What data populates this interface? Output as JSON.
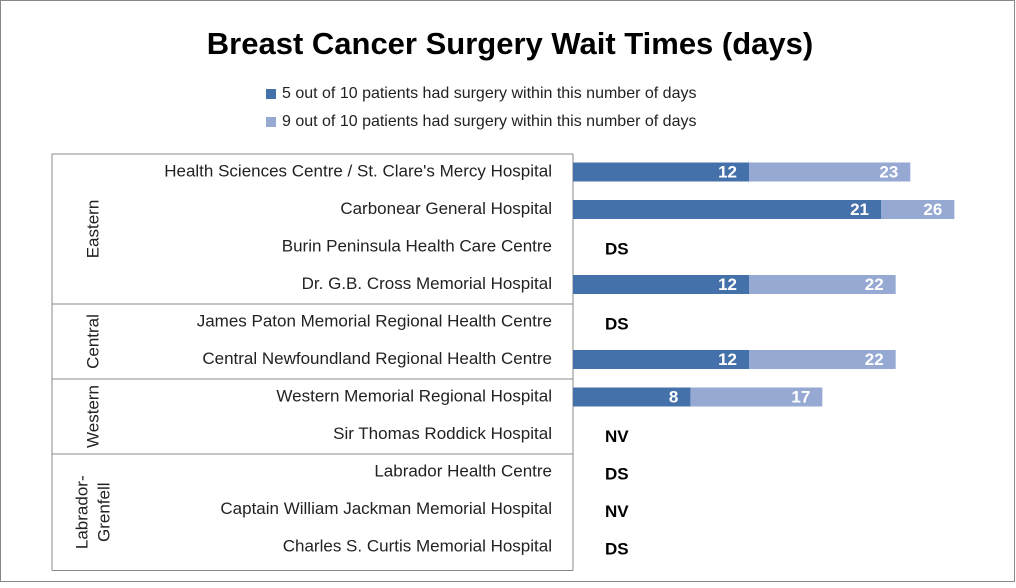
{
  "chart_data": {
    "type": "overlap-bar",
    "title": "Breast Cancer Surgery Wait Times (days)",
    "groups": [
      {
        "name": [
          "Eastern"
        ],
        "categories": [
          "Health Sciences Centre / St. Clare's Mercy Hospital",
          "Carbonear General Hospital",
          "Burin Peninsula Health Care Centre",
          "Dr. G.B. Cross Memorial Hospital"
        ]
      },
      {
        "name": [
          "Central"
        ],
        "categories": [
          "James Paton Memorial Regional Health Centre",
          "Central Newfoundland Regional Health Centre"
        ]
      },
      {
        "name": [
          "Western"
        ],
        "categories": [
          "Western Memorial Regional Hospital",
          "Sir Thomas Roddick Hospital"
        ]
      },
      {
        "name": [
          "Labrador-",
          "Grenfell"
        ],
        "categories": [
          "Labrador Health Centre",
          "Captain William Jackman Memorial Hospital",
          "Charles S. Curtis Memorial Hospital"
        ]
      }
    ],
    "series": [
      {
        "name": "5 out of 10 patients had surgery within this number of days",
        "color": "#4571aa",
        "values": [
          12,
          21,
          null,
          12,
          null,
          12,
          8,
          null,
          null,
          null,
          null
        ],
        "value_labels": [
          null,
          null,
          "DS",
          null,
          "DS",
          null,
          null,
          "NV",
          "DS",
          "NV",
          "DS"
        ]
      },
      {
        "name": "9 out of 10 patients had surgery within this number of days",
        "color": "#95a9d2",
        "values": [
          23,
          26,
          null,
          22,
          null,
          22,
          17,
          null,
          null,
          null,
          null
        ]
      }
    ],
    "xlim": [
      0,
      30
    ]
  }
}
